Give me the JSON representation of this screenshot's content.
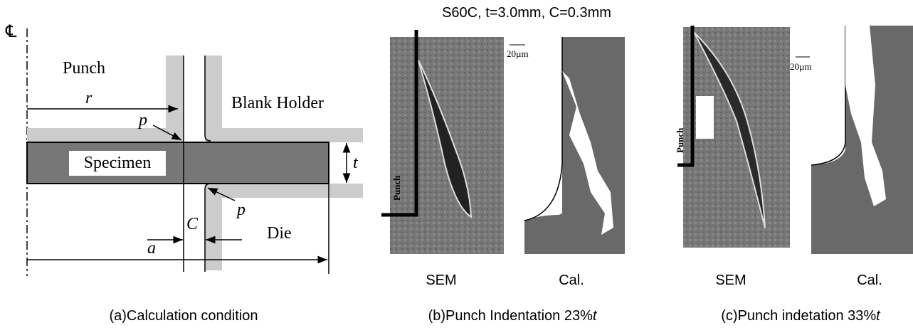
{
  "title": "S60C,  t=3.0mm, C=0.3mm",
  "panel_a": {
    "center_line": "℄",
    "punch": "Punch",
    "blank_holder": "Blank Holder",
    "specimen": "Specimen",
    "die": "Die",
    "r": "r",
    "p_top": "p",
    "p_bottom": "p",
    "c": "C",
    "a": "a",
    "t": "t",
    "caption": "(a)Calculation condition"
  },
  "panel_b": {
    "sem_label": "SEM",
    "cal_label": "Cal.",
    "scale": "20µm",
    "punch": "Punch",
    "caption": "(b)Punch Indentation 23%",
    "caption_var": "t"
  },
  "panel_c": {
    "sem_label": "SEM",
    "cal_label": "Cal.",
    "scale": "20µm",
    "punch": "Punch",
    "caption": "(c)Punch indetation 33%",
    "caption_var": "t"
  }
}
